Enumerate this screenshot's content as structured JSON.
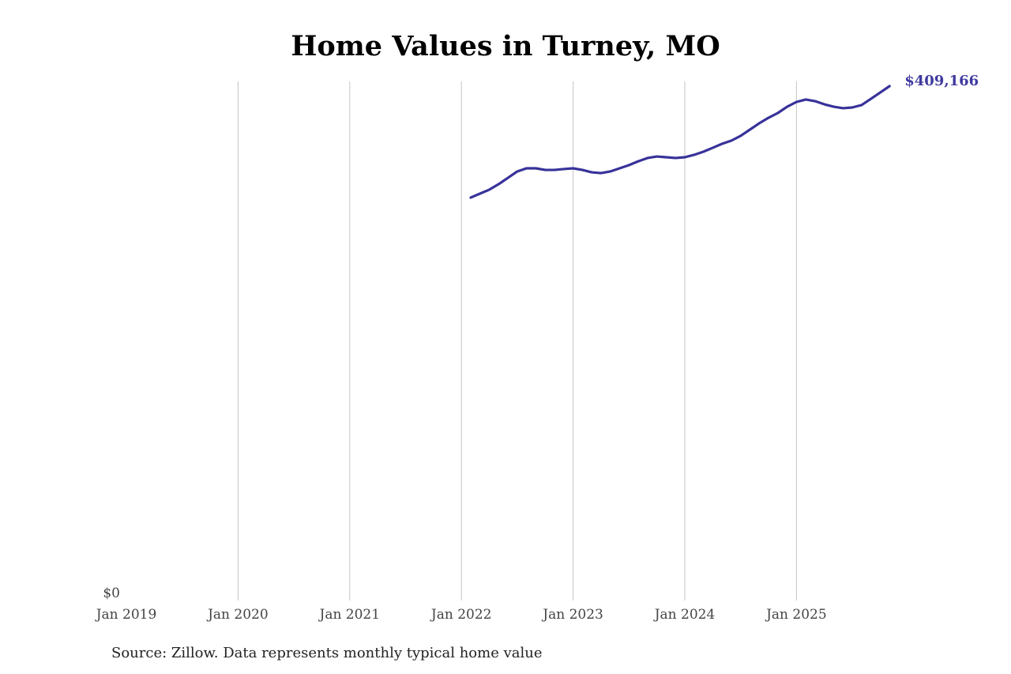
{
  "chart_data": {
    "type": "line",
    "title": "Home Values in Turney, MO",
    "source": "Source: Zillow. Data represents monthly typical home value",
    "xlabel": "",
    "ylabel": "",
    "x_ticks": [
      "Jan 2019",
      "Jan 2020",
      "Jan 2021",
      "Jan 2022",
      "Jan 2023",
      "Jan 2024",
      "Jan 2025"
    ],
    "y_ticks": [
      "$0"
    ],
    "xlim": [
      "2019-01",
      "2025-11"
    ],
    "ylim": [
      0,
      409166
    ],
    "grid": "vertical",
    "line_color": "#38329a",
    "end_label": "$409,166",
    "series": [
      {
        "x": [
          "2022-02",
          "2022-03",
          "2022-04",
          "2022-05",
          "2022-06",
          "2022-07",
          "2022-08",
          "2022-09",
          "2022-10",
          "2022-11",
          "2022-12",
          "2023-01",
          "2023-02",
          "2023-03",
          "2023-04",
          "2023-05",
          "2023-06",
          "2023-07",
          "2023-08",
          "2023-09",
          "2023-10",
          "2023-11",
          "2023-12",
          "2024-01",
          "2024-02",
          "2024-03",
          "2024-04",
          "2024-05",
          "2024-06",
          "2024-07",
          "2024-08",
          "2024-09",
          "2024-10",
          "2024-11",
          "2024-12",
          "2025-01",
          "2025-02",
          "2025-03",
          "2025-04",
          "2025-05",
          "2025-06",
          "2025-07",
          "2025-08",
          "2025-09",
          "2025-10",
          "2025-11"
        ],
        "values": [
          320500,
          323700,
          326800,
          331200,
          336200,
          341300,
          343800,
          343800,
          342500,
          342500,
          343200,
          343800,
          342500,
          340600,
          340000,
          341300,
          343800,
          346300,
          349400,
          352000,
          353200,
          352600,
          352000,
          352600,
          354500,
          357000,
          360100,
          363300,
          365800,
          369600,
          374600,
          379600,
          384000,
          387800,
          392800,
          396600,
          398500,
          397200,
          394700,
          392800,
          391600,
          392200,
          394100,
          399100,
          404100,
          409166
        ]
      }
    ]
  }
}
